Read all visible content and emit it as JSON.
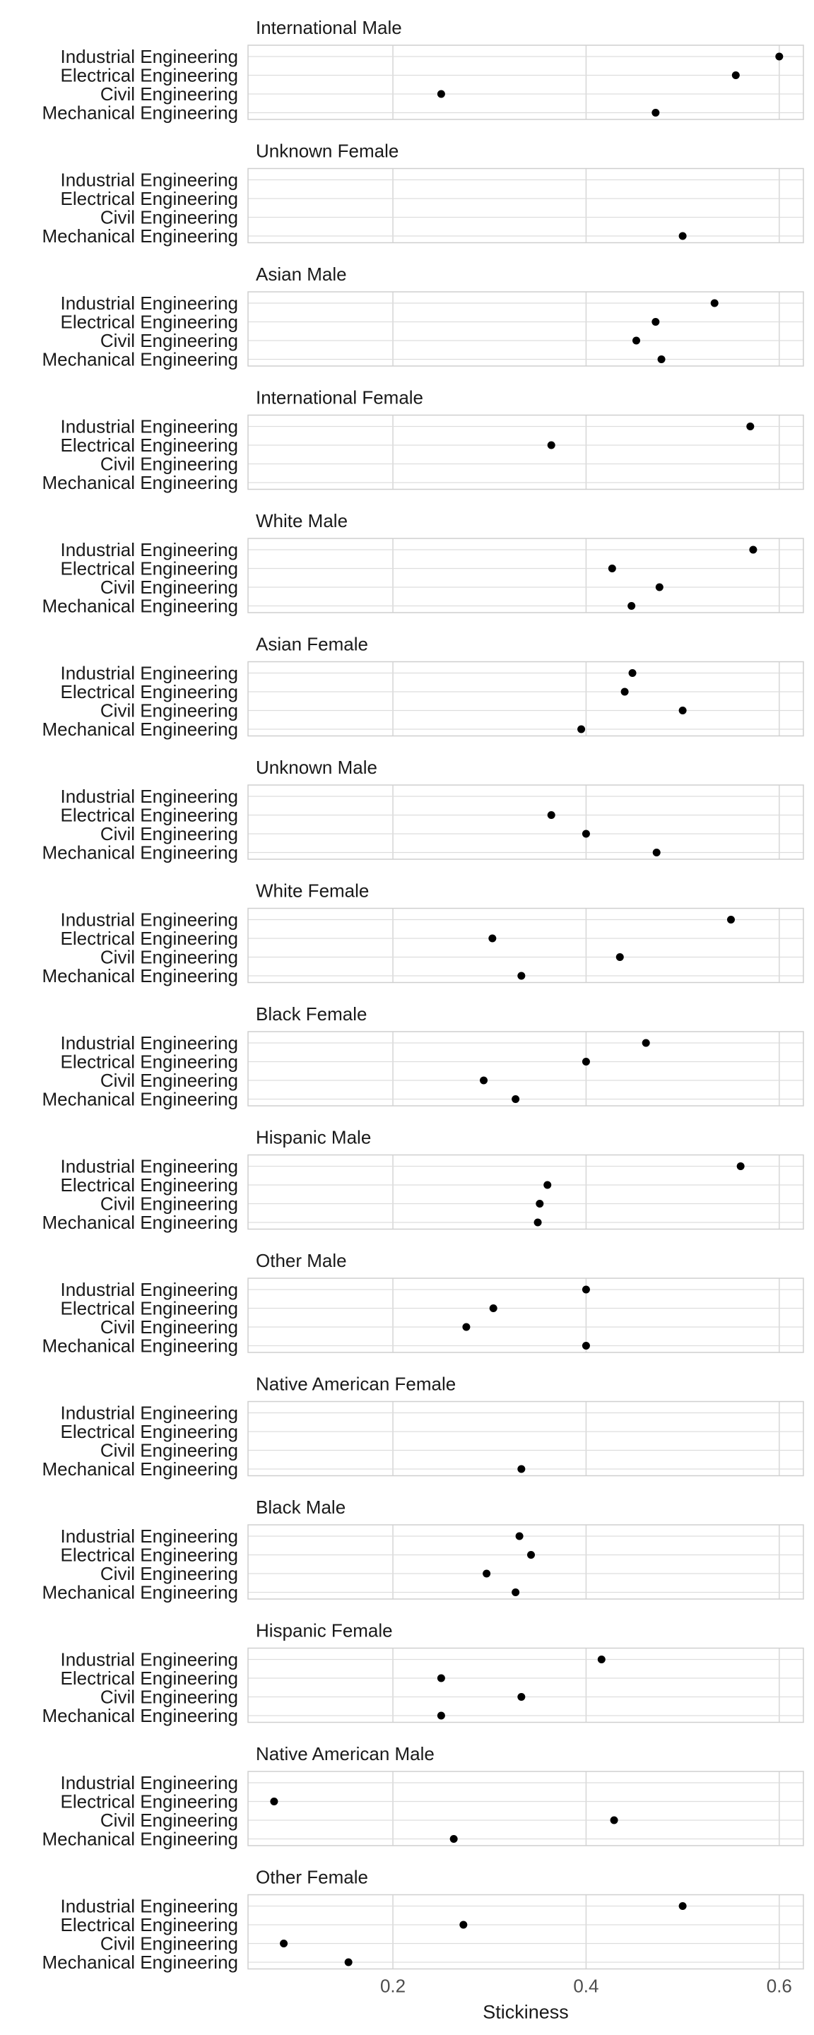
{
  "chart_data": {
    "type": "scatter",
    "xlabel": "Stickiness",
    "ylabel": "",
    "xlim": [
      0.05,
      0.625
    ],
    "xticks": [
      0.2,
      0.4,
      0.6
    ],
    "xtick_labels": [
      "0.2",
      "0.4",
      "0.6"
    ],
    "grid": true,
    "categories": [
      "Industrial Engineering",
      "Electrical Engineering",
      "Civil Engineering",
      "Mechanical Engineering"
    ],
    "facets": [
      {
        "title": "International Male",
        "values": [
          0.6,
          0.555,
          0.25,
          0.472
        ]
      },
      {
        "title": "Unknown Female",
        "values": [
          null,
          null,
          null,
          0.5
        ]
      },
      {
        "title": "Asian Male",
        "values": [
          0.533,
          0.472,
          0.452,
          0.478
        ]
      },
      {
        "title": "International Female",
        "values": [
          0.57,
          0.364,
          null,
          null
        ]
      },
      {
        "title": "White Male",
        "values": [
          0.573,
          0.427,
          0.476,
          0.447
        ]
      },
      {
        "title": "Asian Female",
        "values": [
          0.448,
          0.44,
          0.5,
          0.395
        ]
      },
      {
        "title": "Unknown Male",
        "values": [
          null,
          0.364,
          0.4,
          0.473
        ]
      },
      {
        "title": "White Female",
        "values": [
          0.55,
          0.303,
          0.435,
          0.333
        ]
      },
      {
        "title": "Black Female",
        "values": [
          0.462,
          0.4,
          0.294,
          0.327
        ]
      },
      {
        "title": "Hispanic Male",
        "values": [
          0.56,
          0.36,
          0.352,
          0.35
        ]
      },
      {
        "title": "Other Male",
        "values": [
          0.4,
          0.304,
          0.276,
          0.4
        ]
      },
      {
        "title": "Native American Female",
        "values": [
          null,
          null,
          null,
          0.333
        ]
      },
      {
        "title": "Black Male",
        "values": [
          0.331,
          0.343,
          0.297,
          0.327
        ]
      },
      {
        "title": "Hispanic Female",
        "values": [
          0.416,
          0.25,
          0.333,
          0.25
        ]
      },
      {
        "title": "Native American Male",
        "values": [
          null,
          0.077,
          0.429,
          0.263
        ]
      },
      {
        "title": "Other Female",
        "values": [
          0.5,
          0.273,
          0.087,
          0.154
        ]
      }
    ]
  }
}
